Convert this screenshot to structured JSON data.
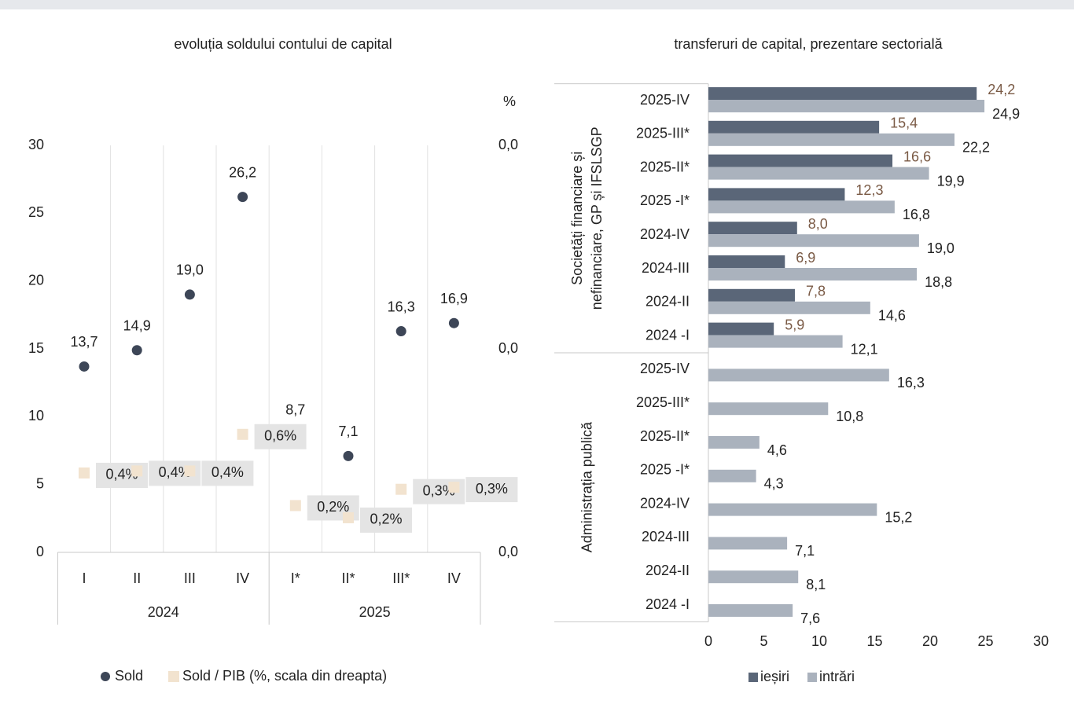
{
  "chart_data": [
    {
      "type": "scatter",
      "title": "evoluția soldului contului de capital",
      "categories": [
        "I",
        "II",
        "III",
        "IV",
        "I*",
        "II*",
        "III*",
        "IV"
      ],
      "groups": [
        {
          "label": "2024",
          "count": 4
        },
        {
          "label": "2025",
          "count": 4
        }
      ],
      "ylim": [
        0,
        30
      ],
      "yticks": [
        0,
        5,
        10,
        15,
        20,
        25,
        30
      ],
      "y2label": "%",
      "y2lim": [
        0,
        2
      ],
      "y2ticks": [
        {
          "value": 0,
          "label": "0,0"
        },
        {
          "value": 1,
          "label": "0,0"
        },
        {
          "value": 2,
          "label": "0,0"
        }
      ],
      "grid": false,
      "series": [
        {
          "name": "Sold",
          "color": "#3d4657",
          "marker": "circle",
          "values": [
            13.7,
            14.9,
            19.0,
            26.2,
            8.7,
            7.1,
            16.3,
            16.9
          ],
          "value_labels": [
            "13,7",
            "14,9",
            "19,0",
            "26,2",
            "8,7",
            "7,1",
            "16,3",
            "16,9"
          ]
        },
        {
          "name": "Sold / PIB (%, scala din dreapta)",
          "color": "#f2e3cf",
          "marker": "square",
          "axis": "y2",
          "values": [
            0.39,
            0.4,
            0.4,
            0.58,
            0.23,
            0.17,
            0.31,
            0.32
          ],
          "value_labels": [
            "0,4%",
            "0,4%",
            "0,4%",
            "0,6%",
            "0,2%",
            "0,2%",
            "0,3%",
            "0,3%"
          ]
        }
      ]
    },
    {
      "type": "bar",
      "orientation": "horizontal",
      "title": "transferuri de capital, prezentare sectorială",
      "categories": [
        "2025-IV",
        "2025-III*",
        "2025-II*",
        "2025 -I*",
        "2024-IV",
        "2024-III",
        "2024-II",
        "2024 -I",
        "2025-IV",
        "2025-III*",
        "2025-II*",
        "2025 -I*",
        "2024-IV",
        "2024-III",
        "2024-II",
        "2024 -I"
      ],
      "groups": [
        {
          "label_lines": [
            "Societăți financiare și",
            "nefinanciare, GP și IFSLSGP"
          ],
          "count": 8
        },
        {
          "label_lines": [
            "Administrația publică"
          ],
          "count": 8
        }
      ],
      "xlim": [
        0,
        30
      ],
      "xticks": [
        0,
        5,
        10,
        15,
        20,
        25,
        30
      ],
      "series": [
        {
          "name": "ieșiri",
          "color": "#5a6678",
          "label_color": "#7a5a45",
          "values": [
            24.2,
            15.4,
            16.6,
            12.3,
            8.0,
            6.9,
            7.8,
            5.9,
            null,
            null,
            null,
            null,
            null,
            null,
            null,
            null
          ],
          "value_labels": [
            "24,2",
            "15,4",
            "16,6",
            "12,3",
            "8,0",
            "6,9",
            "7,8",
            "5,9",
            null,
            null,
            null,
            null,
            null,
            null,
            null,
            null
          ]
        },
        {
          "name": "intrări",
          "color": "#aab2bd",
          "label_color": "#222222",
          "values": [
            24.9,
            22.2,
            19.9,
            16.8,
            19.0,
            18.8,
            14.6,
            12.1,
            16.3,
            10.8,
            4.6,
            4.3,
            15.2,
            7.1,
            8.1,
            7.6
          ],
          "value_labels": [
            "24,9",
            "22,2",
            "19,9",
            "16,8",
            "19,0",
            "18,8",
            "14,6",
            "12,1",
            "16,3",
            "10,8",
            "4,6",
            "4,3",
            "15,2",
            "7,1",
            "8,1",
            "7,6"
          ]
        }
      ]
    }
  ]
}
